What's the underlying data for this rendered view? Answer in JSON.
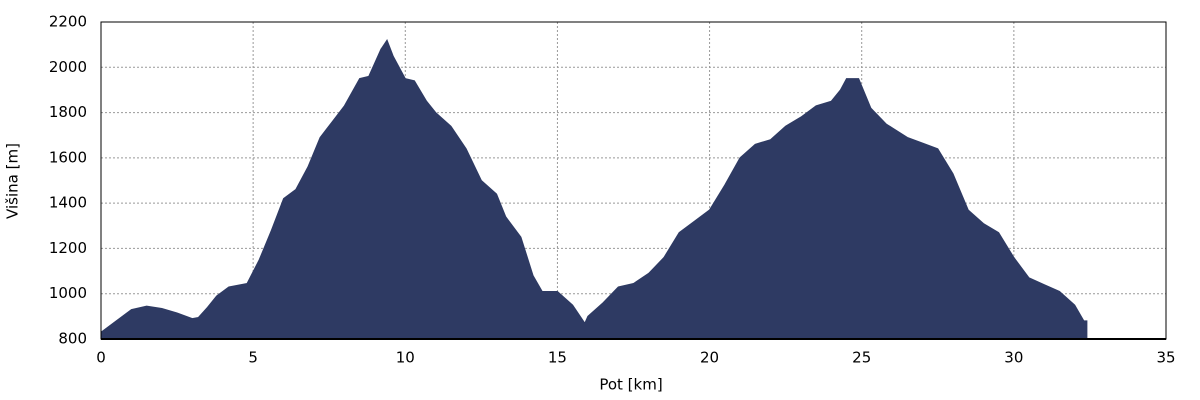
{
  "chart_data": {
    "type": "area",
    "x_label": "Pot [km]",
    "y_label": "Višina [m]",
    "color": "#2e3a63",
    "x": [
      0,
      0.5,
      1,
      1.5,
      2,
      2.5,
      3,
      3.2,
      3.5,
      3.8,
      4.2,
      4.8,
      5.2,
      5.6,
      6,
      6.4,
      6.8,
      7.2,
      7.6,
      8,
      8.5,
      8.8,
      9.2,
      9.4,
      9.6,
      10,
      10.3,
      10.7,
      11,
      11.5,
      12,
      12.5,
      13,
      13.3,
      13.8,
      14.2,
      14.5,
      15,
      15.5,
      15.9,
      16,
      16.5,
      17,
      17.5,
      18,
      18.5,
      19,
      19.5,
      20,
      20.5,
      21,
      21.5,
      22,
      22.5,
      23,
      23.5,
      24,
      24.3,
      24.5,
      24.9,
      25.3,
      25.8,
      26.5,
      27,
      27.5,
      28,
      28.5,
      29,
      29.5,
      30,
      30.5,
      31,
      31.5,
      32,
      32.3,
      32.4
    ],
    "values": [
      830,
      880,
      930,
      945,
      935,
      915,
      890,
      895,
      940,
      990,
      1030,
      1045,
      1150,
      1280,
      1420,
      1460,
      1560,
      1690,
      1760,
      1830,
      1950,
      1960,
      2080,
      2120,
      2050,
      1950,
      1940,
      1850,
      1800,
      1740,
      1640,
      1500,
      1440,
      1340,
      1250,
      1080,
      1010,
      1010,
      950,
      870,
      900,
      960,
      1030,
      1045,
      1090,
      1160,
      1270,
      1320,
      1370,
      1480,
      1600,
      1660,
      1680,
      1740,
      1780,
      1830,
      1850,
      1900,
      1950,
      1950,
      1820,
      1750,
      1690,
      1665,
      1640,
      1530,
      1370,
      1310,
      1270,
      1160,
      1070,
      1040,
      1010,
      950,
      880,
      880
    ],
    "xlim": [
      0,
      35
    ],
    "xticks": [
      0,
      5,
      10,
      15,
      20,
      25,
      30,
      35
    ],
    "ylim": [
      800,
      2200
    ],
    "yticks": [
      800,
      1000,
      1200,
      1400,
      1600,
      1800,
      2000,
      2200
    ],
    "grid": true
  }
}
